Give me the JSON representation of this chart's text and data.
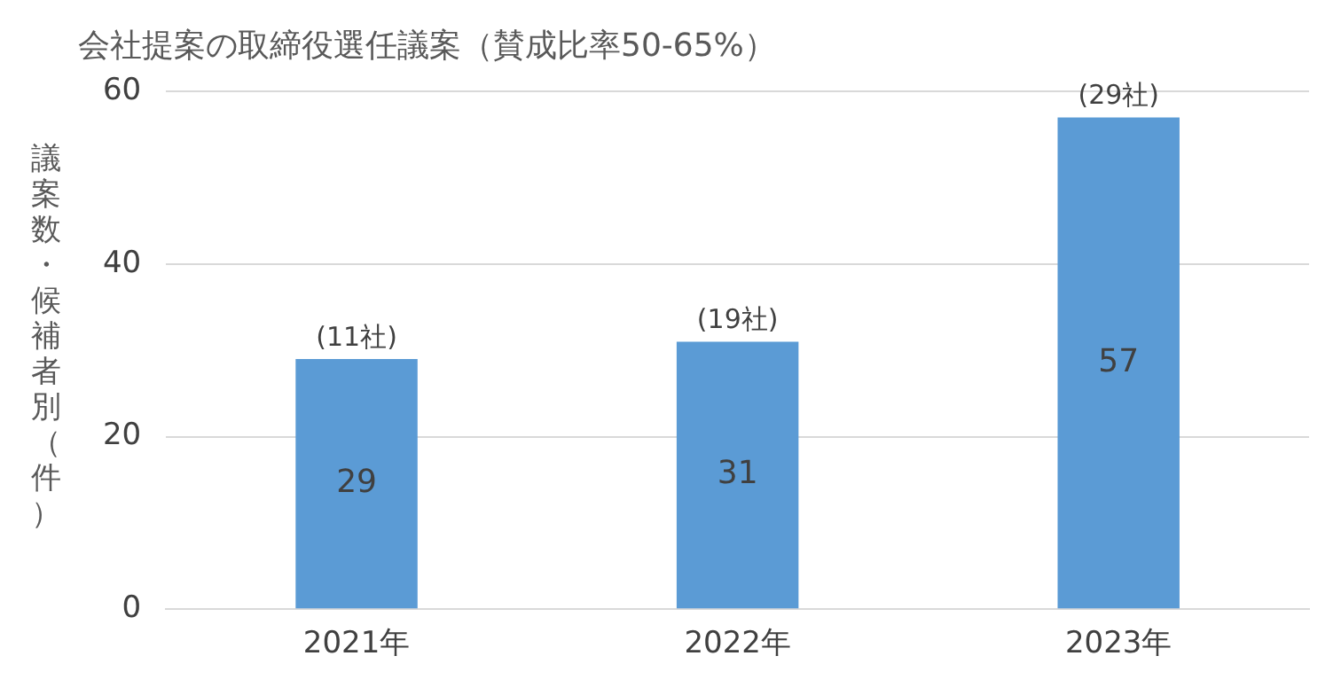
{
  "chart_data": {
    "type": "bar",
    "title": "会社提案の取締役選任議案（賛成比率50-65%）",
    "ylabel": "議案数・候補者別（件）",
    "categories": [
      "2021年",
      "2022年",
      "2023年"
    ],
    "values": [
      29,
      31,
      57
    ],
    "color": "#5b9bd5",
    "ylim": [
      0,
      60
    ],
    "yticks": [
      0,
      20,
      40,
      60
    ],
    "grid": "y",
    "data_labels": true,
    "legend": false,
    "annotations": [
      {
        "text": "(11社)",
        "x": "2021年",
        "y": 29
      },
      {
        "text": "(19社)",
        "x": "2022年",
        "y": 31
      },
      {
        "text": "(29社)",
        "x": "2023年",
        "y": 57
      }
    ]
  }
}
